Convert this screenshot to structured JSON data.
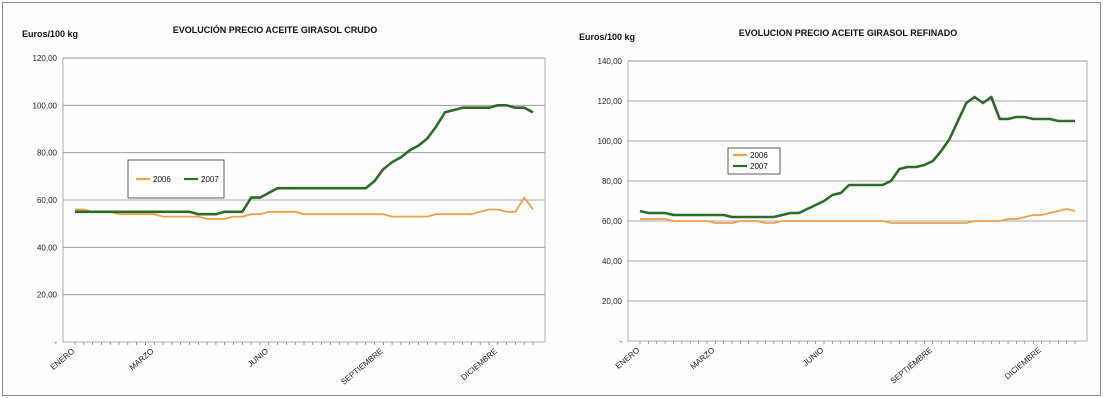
{
  "chart_data": [
    {
      "type": "line",
      "title": "EVOLUCIÓN PRECIO ACEITE GIRASOL CRUDO",
      "ylabel": "Euros/100 kg",
      "ylim": [
        0,
        120
      ],
      "yticks": [
        "-",
        "20,00",
        "40,00",
        "60,00",
        "80,00",
        "100,00",
        "120,00"
      ],
      "xticks": [
        "ENERO",
        "MARZO",
        "JUNIO",
        "SEPTIEMBRE",
        "DICIEMBRE"
      ],
      "xtick_positions": [
        0,
        9,
        22,
        35,
        48
      ],
      "n_points": 53,
      "grid": true,
      "legend_position": "center-left",
      "series": [
        {
          "name": "2006",
          "color": "#f0a04b",
          "values": [
            56,
            56,
            55,
            55,
            55,
            54,
            54,
            54,
            54,
            54,
            53,
            53,
            53,
            53,
            53,
            52,
            52,
            52,
            53,
            53,
            54,
            54,
            55,
            55,
            55,
            55,
            54,
            54,
            54,
            54,
            54,
            54,
            54,
            54,
            54,
            54,
            53,
            53,
            53,
            53,
            53,
            54,
            54,
            54,
            54,
            54,
            55,
            56,
            56,
            55,
            55,
            61,
            56
          ]
        },
        {
          "name": "2007",
          "color": "#2e6b2a",
          "values": [
            55,
            55,
            55,
            55,
            55,
            55,
            55,
            55,
            55,
            55,
            55,
            55,
            55,
            55,
            54,
            54,
            54,
            55,
            55,
            55,
            61,
            61,
            63,
            65,
            65,
            65,
            65,
            65,
            65,
            65,
            65,
            65,
            65,
            65,
            68,
            73,
            76,
            78,
            81,
            83,
            86,
            91,
            97,
            98,
            99,
            99,
            99,
            99,
            100,
            100,
            99,
            99,
            97
          ]
        }
      ]
    },
    {
      "type": "line",
      "title": "EVOLUCION PRECIO ACEITE GIRASOL REFINADO",
      "ylabel": "Euros/100 kg",
      "ylim": [
        0,
        140
      ],
      "yticks": [
        "-",
        "20,00",
        "40,00",
        "60,00",
        "80,00",
        "100,00",
        "120,00",
        "140,00"
      ],
      "xticks": [
        "ENERO",
        "MARZO",
        "JUNIO",
        "SEPTIEMBRE",
        "DICIEMBRE"
      ],
      "xtick_positions": [
        0,
        9,
        22,
        35,
        48
      ],
      "n_points": 53,
      "grid": true,
      "legend_position": "center-left",
      "series": [
        {
          "name": "2006",
          "color": "#f0a04b",
          "values": [
            61,
            61,
            61,
            61,
            60,
            60,
            60,
            60,
            60,
            59,
            59,
            59,
            60,
            60,
            60,
            59,
            59,
            60,
            60,
            60,
            60,
            60,
            60,
            60,
            60,
            60,
            60,
            60,
            60,
            60,
            59,
            59,
            59,
            59,
            59,
            59,
            59,
            59,
            59,
            59,
            60,
            60,
            60,
            60,
            61,
            61,
            62,
            63,
            63,
            64,
            65,
            66,
            65
          ]
        },
        {
          "name": "2007",
          "color": "#2e6b2a",
          "values": [
            65,
            64,
            64,
            64,
            63,
            63,
            63,
            63,
            63,
            63,
            63,
            62,
            62,
            62,
            62,
            62,
            62,
            63,
            64,
            64,
            66,
            68,
            70,
            73,
            74,
            78,
            78,
            78,
            78,
            78,
            80,
            86,
            87,
            87,
            88,
            90,
            95,
            101,
            110,
            119,
            122,
            119,
            122,
            111,
            111,
            112,
            112,
            111,
            111,
            111,
            110,
            110,
            110
          ]
        }
      ]
    }
  ]
}
